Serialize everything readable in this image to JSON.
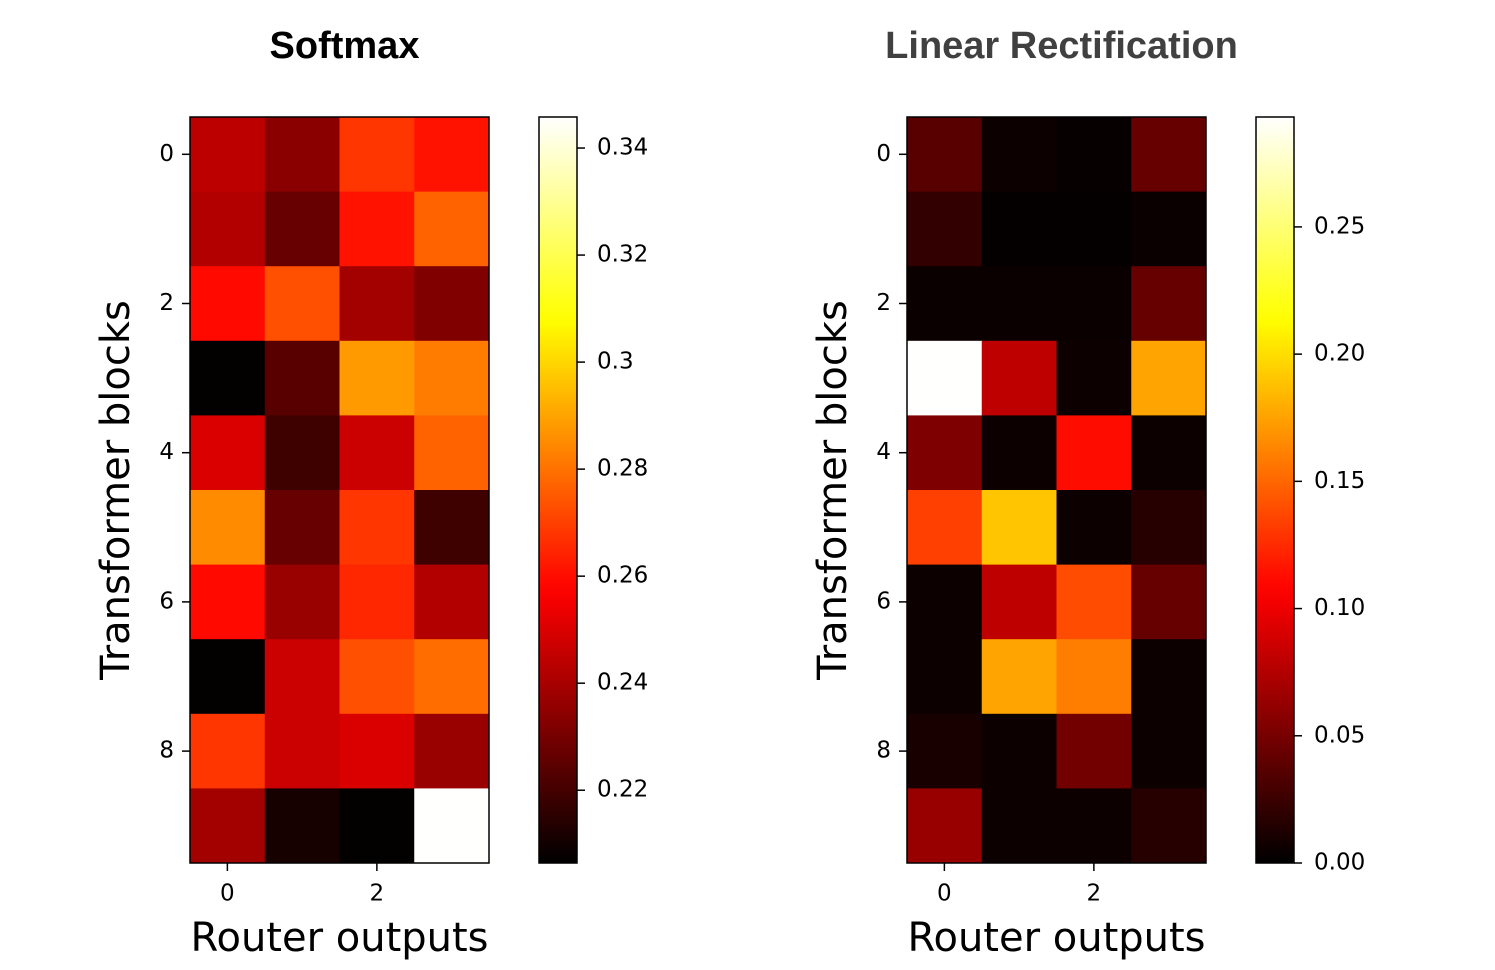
{
  "chart_data": [
    {
      "type": "heatmap",
      "title": "Softmax",
      "title_color": "#000000",
      "xlabel": "Router outputs",
      "ylabel": "Transformer blocks",
      "colormap": "hot",
      "z": [
        [
          0.244,
          0.234,
          0.268,
          0.261
        ],
        [
          0.242,
          0.227,
          0.261,
          0.277
        ],
        [
          0.259,
          0.273,
          0.239,
          0.232
        ],
        [
          0.207,
          0.224,
          0.288,
          0.282
        ],
        [
          0.25,
          0.219,
          0.247,
          0.277
        ],
        [
          0.285,
          0.227,
          0.268,
          0.219
        ],
        [
          0.259,
          0.237,
          0.265,
          0.242
        ],
        [
          0.207,
          0.247,
          0.273,
          0.279
        ],
        [
          0.268,
          0.247,
          0.25,
          0.237
        ],
        [
          0.239,
          0.211,
          0.207,
          0.3455
        ]
      ],
      "xlim": [
        -0.5,
        3.5
      ],
      "xticks": [
        0,
        2
      ],
      "ylim": [
        9.5,
        -0.5
      ],
      "yticks": [
        0,
        2,
        4,
        6,
        8
      ],
      "clim": [
        0.2064,
        0.3458
      ],
      "cticks": [
        0.22,
        0.24,
        0.26,
        0.28,
        0.3,
        0.32,
        0.34
      ]
    },
    {
      "type": "heatmap",
      "title": "Linear Rectification",
      "title_color": "#404040",
      "xlabel": "Router outputs",
      "ylabel": "Transformer blocks",
      "colormap": "hot",
      "z": [
        [
          0.037,
          0.005,
          0.003,
          0.043
        ],
        [
          0.021,
          0.002,
          0.002,
          0.004
        ],
        [
          0.004,
          0.004,
          0.004,
          0.043
        ],
        [
          0.293,
          0.08,
          0.005,
          0.176
        ],
        [
          0.053,
          0.005,
          0.112,
          0.005
        ],
        [
          0.134,
          0.19,
          0.005,
          0.016
        ],
        [
          0.005,
          0.08,
          0.139,
          0.043
        ],
        [
          0.005,
          0.176,
          0.16,
          0.005
        ],
        [
          0.01,
          0.005,
          0.048,
          0.005
        ],
        [
          0.064,
          0.005,
          0.005,
          0.016
        ]
      ],
      "xlim": [
        -0.5,
        3.5
      ],
      "xticks": [
        0,
        2
      ],
      "ylim": [
        9.5,
        -0.5
      ],
      "yticks": [
        0,
        2,
        4,
        6,
        8
      ],
      "clim": [
        0,
        0.2932
      ],
      "cticks": [
        {
          "value": 0,
          "label": "0.00"
        },
        {
          "value": 0.05,
          "label": "0.05"
        },
        {
          "value": 0.1,
          "label": "0.10"
        },
        {
          "value": 0.15,
          "label": "0.15"
        },
        {
          "value": 0.2,
          "label": "0.20"
        },
        {
          "value": 0.25,
          "label": "0.25"
        }
      ]
    }
  ]
}
